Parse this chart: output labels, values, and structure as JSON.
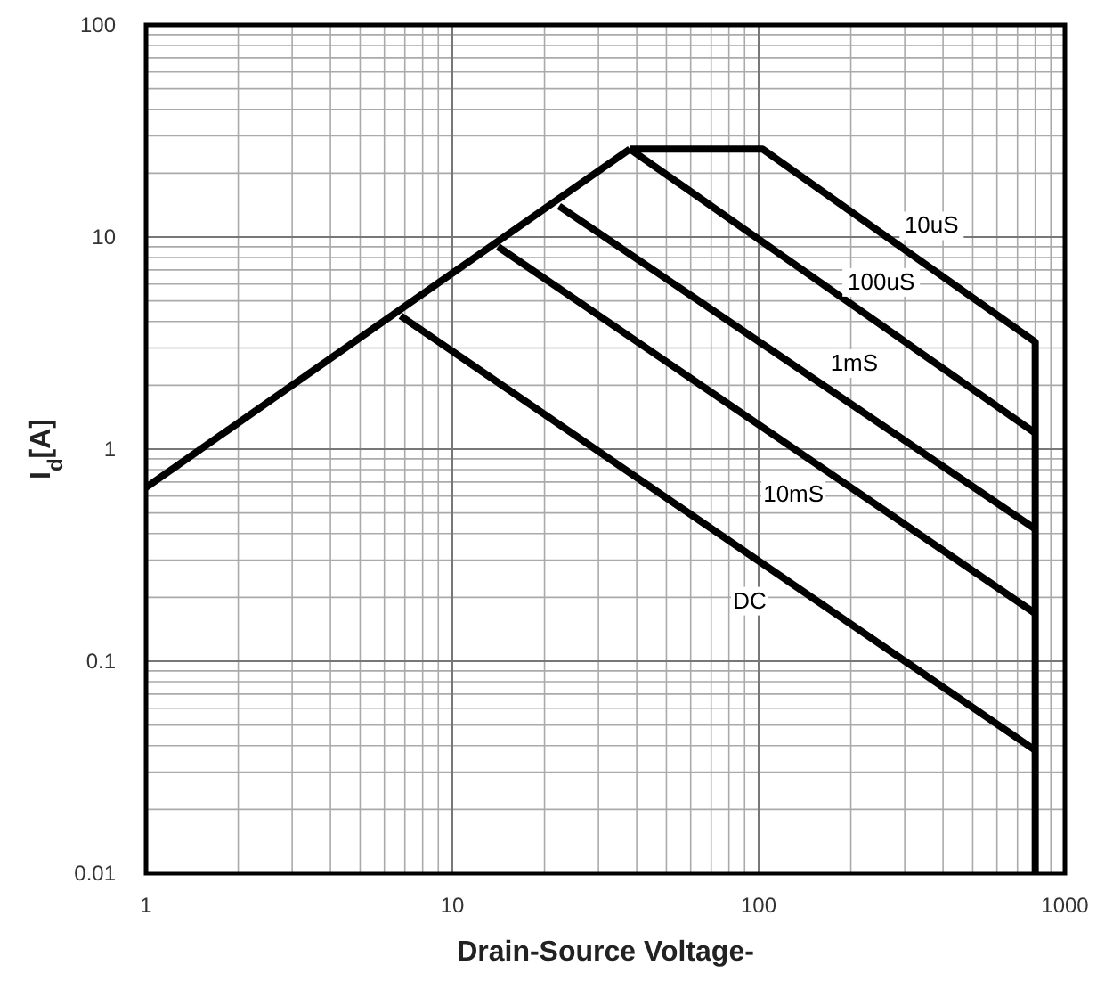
{
  "chart_data": {
    "type": "line",
    "xlabel": "Drain-Source Voltage-",
    "ylabel": "I$_{d}$[A]",
    "log": "xy",
    "grid": true,
    "marker": "none",
    "line_style": "solid",
    "xlim": [
      1,
      1000
    ],
    "xticks": [
      1,
      10,
      100,
      1000
    ],
    "ylim": [
      0.01,
      100
    ],
    "yticks": [
      0.01,
      0.1,
      1,
      10,
      100
    ],
    "series": [
      {
        "color": "#000000",
        "x": [
          1,
          38
        ],
        "values": [
          0.66,
          26
        ]
      },
      {
        "name": "10uS",
        "color": "#000000",
        "x": [
          38,
          103,
          800,
          800
        ],
        "values": [
          26,
          26,
          3.2,
          0.01
        ]
      },
      {
        "name": "100uS",
        "color": "#000000",
        "x": [
          38,
          800
        ],
        "values": [
          26,
          1.19
        ]
      },
      {
        "name": "1mS",
        "color": "#000000",
        "x": [
          22.3,
          800
        ],
        "values": [
          14,
          0.42
        ]
      },
      {
        "name": "10mS",
        "color": "#000000",
        "x": [
          14.1,
          800
        ],
        "values": [
          9.0,
          0.168
        ]
      },
      {
        "name": "DC",
        "color": "#000000",
        "x": [
          6.78,
          800
        ],
        "values": [
          4.25,
          0.038
        ]
      }
    ]
  }
}
